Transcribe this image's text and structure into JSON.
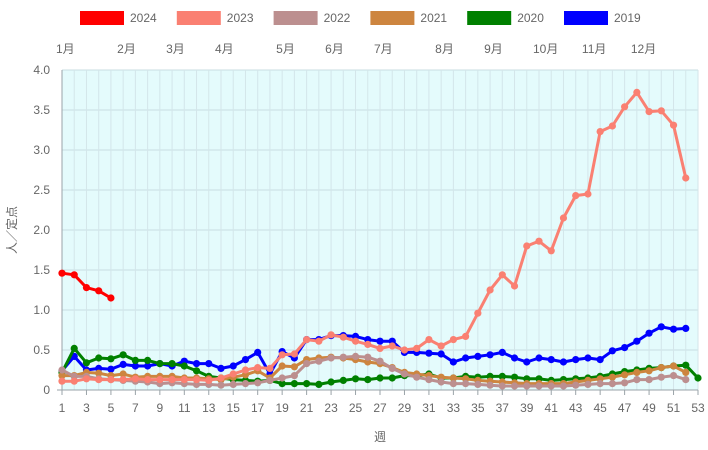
{
  "chart_data": {
    "type": "line",
    "title": "",
    "xlabel": "週",
    "ylabel": "人／定点",
    "xlim": [
      1,
      53
    ],
    "ylim": [
      0,
      4.0
    ],
    "yticks": [
      "0",
      "0.5",
      "1.0",
      "1.5",
      "2.0",
      "2.5",
      "3.0",
      "3.5",
      "4.0"
    ],
    "xticks": [
      "1",
      "3",
      "5",
      "7",
      "9",
      "11",
      "13",
      "15",
      "17",
      "19",
      "21",
      "23",
      "25",
      "27",
      "29",
      "31",
      "33",
      "35",
      "37",
      "39",
      "41",
      "43",
      "45",
      "47",
      "49",
      "51",
      "53"
    ],
    "months": [
      {
        "label": "1月",
        "week": 1
      },
      {
        "label": "2月",
        "week": 6
      },
      {
        "label": "3月",
        "week": 10
      },
      {
        "label": "4月",
        "week": 14
      },
      {
        "label": "5月",
        "week": 19
      },
      {
        "label": "6月",
        "week": 23
      },
      {
        "label": "7月",
        "week": 27
      },
      {
        "label": "8月",
        "week": 32
      },
      {
        "label": "9月",
        "week": 36
      },
      {
        "label": "10月",
        "week": 40
      },
      {
        "label": "11月",
        "week": 44
      },
      {
        "label": "12月",
        "week": 48
      }
    ],
    "background_color": "#e4fbfc",
    "grid": true,
    "legend_position": "top",
    "series": [
      {
        "name": "2024",
        "color": "#ff0000",
        "values": [
          1.46,
          1.44,
          1.28,
          1.24,
          1.15
        ]
      },
      {
        "name": "2023",
        "color": "#fa8072",
        "values": [
          0.11,
          0.11,
          0.14,
          0.13,
          0.13,
          0.13,
          0.14,
          0.13,
          0.13,
          0.13,
          0.13,
          0.13,
          0.12,
          0.15,
          0.2,
          0.25,
          0.28,
          0.27,
          0.44,
          0.45,
          0.63,
          0.61,
          0.69,
          0.66,
          0.61,
          0.57,
          0.52,
          0.55,
          0.5,
          0.52,
          0.63,
          0.55,
          0.63,
          0.67,
          0.96,
          1.25,
          1.44,
          1.3,
          1.8,
          1.86,
          1.74,
          2.15,
          2.43,
          2.45,
          3.23,
          3.3,
          3.54,
          3.72,
          3.48,
          3.49,
          3.31,
          2.65
        ]
      },
      {
        "name": "2022",
        "color": "#bc8f8f",
        "values": [
          0.25,
          0.17,
          0.17,
          0.14,
          0.13,
          0.12,
          0.11,
          0.1,
          0.08,
          0.09,
          0.08,
          0.07,
          0.07,
          0.06,
          0.07,
          0.08,
          0.09,
          0.12,
          0.15,
          0.18,
          0.33,
          0.36,
          0.4,
          0.41,
          0.42,
          0.41,
          0.36,
          0.27,
          0.2,
          0.16,
          0.13,
          0.1,
          0.08,
          0.08,
          0.07,
          0.06,
          0.05,
          0.05,
          0.05,
          0.05,
          0.05,
          0.05,
          0.06,
          0.07,
          0.08,
          0.08,
          0.09,
          0.13,
          0.13,
          0.16,
          0.18,
          0.13
        ]
      },
      {
        "name": "2021",
        "color": "#cd853f",
        "values": [
          0.18,
          0.18,
          0.22,
          0.21,
          0.18,
          0.2,
          0.16,
          0.17,
          0.17,
          0.17,
          0.15,
          0.15,
          0.14,
          0.13,
          0.16,
          0.19,
          0.24,
          0.15,
          0.3,
          0.29,
          0.38,
          0.4,
          0.41,
          0.4,
          0.38,
          0.35,
          0.33,
          0.28,
          0.22,
          0.2,
          0.18,
          0.16,
          0.15,
          0.14,
          0.12,
          0.11,
          0.1,
          0.09,
          0.08,
          0.08,
          0.08,
          0.08,
          0.1,
          0.12,
          0.14,
          0.16,
          0.19,
          0.22,
          0.24,
          0.28,
          0.3,
          0.22
        ]
      },
      {
        "name": "2020",
        "color": "#008000",
        "values": [
          0.22,
          0.52,
          0.34,
          0.4,
          0.39,
          0.44,
          0.37,
          0.37,
          0.33,
          0.33,
          0.3,
          0.24,
          0.17,
          0.15,
          0.13,
          0.12,
          0.11,
          0.12,
          0.08,
          0.08,
          0.08,
          0.07,
          0.1,
          0.12,
          0.14,
          0.13,
          0.15,
          0.15,
          0.18,
          0.18,
          0.2,
          0.15,
          0.15,
          0.17,
          0.16,
          0.17,
          0.17,
          0.16,
          0.14,
          0.14,
          0.12,
          0.13,
          0.14,
          0.15,
          0.17,
          0.2,
          0.23,
          0.25,
          0.27,
          0.28,
          0.3,
          0.31,
          0.15
        ]
      },
      {
        "name": "2019",
        "color": "#0000ff",
        "values": [
          0.24,
          0.42,
          0.25,
          0.27,
          0.26,
          0.32,
          0.3,
          0.3,
          0.33,
          0.3,
          0.36,
          0.33,
          0.33,
          0.27,
          0.3,
          0.38,
          0.47,
          0.2,
          0.48,
          0.4,
          0.63,
          0.63,
          0.68,
          0.68,
          0.67,
          0.63,
          0.61,
          0.61,
          0.47,
          0.47,
          0.46,
          0.45,
          0.35,
          0.4,
          0.42,
          0.44,
          0.47,
          0.4,
          0.35,
          0.4,
          0.38,
          0.35,
          0.38,
          0.4,
          0.38,
          0.49,
          0.53,
          0.61,
          0.71,
          0.79,
          0.76,
          0.77
        ]
      }
    ]
  }
}
